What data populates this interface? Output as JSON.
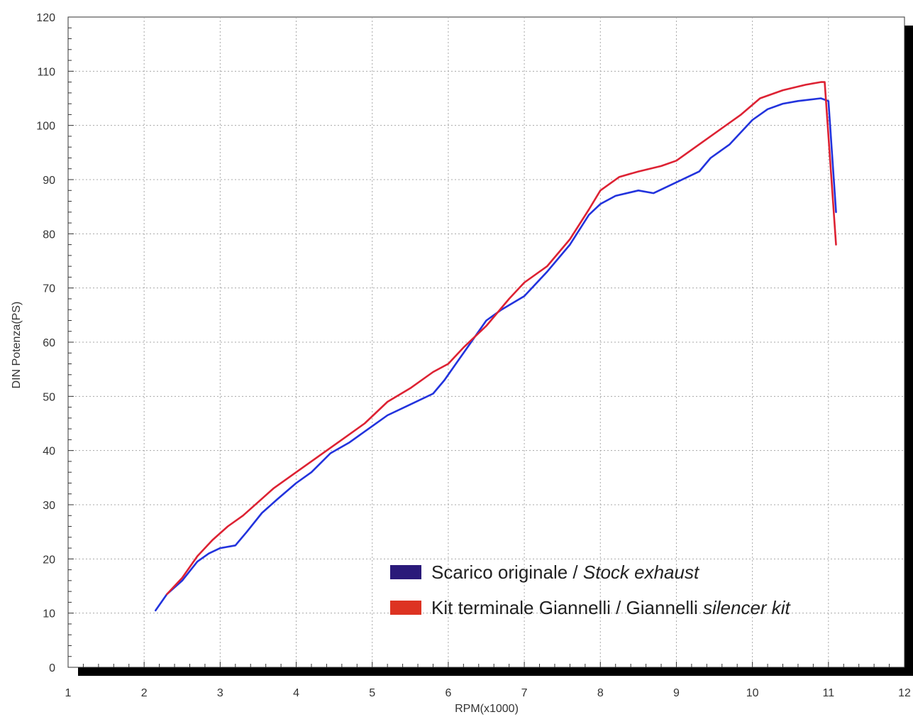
{
  "chart_data": {
    "type": "line",
    "title": "",
    "xlabel": "RPM(x1000)",
    "ylabel": "DIN Potenza(PS)",
    "xlim": [
      1,
      12
    ],
    "ylim": [
      0,
      120
    ],
    "xticks": [
      "1",
      "2",
      "3",
      "4",
      "5",
      "6",
      "7",
      "8",
      "9",
      "10",
      "11",
      "12"
    ],
    "yticks": [
      "0",
      "10",
      "20",
      "30",
      "40",
      "50",
      "60",
      "70",
      "80",
      "90",
      "100",
      "110",
      "120"
    ],
    "grid": true,
    "legend_position": "bottom-right",
    "series": [
      {
        "name": "Scarico originale / Stock exhaust",
        "legend_main": "Scarico originale / ",
        "legend_italic": "Stock exhaust",
        "legend_suffix": "",
        "legend_swatch_color": "#2a1a7a",
        "color": "#2233dd",
        "x": [
          2.15,
          2.3,
          2.5,
          2.7,
          2.85,
          3.0,
          3.2,
          3.35,
          3.55,
          3.75,
          4.0,
          4.2,
          4.45,
          4.7,
          5.0,
          5.2,
          5.5,
          5.8,
          5.95,
          6.1,
          6.3,
          6.5,
          6.7,
          7.0,
          7.3,
          7.6,
          7.85,
          8.0,
          8.2,
          8.5,
          8.7,
          9.0,
          9.3,
          9.45,
          9.7,
          10.0,
          10.2,
          10.4,
          10.6,
          10.9,
          11.0,
          11.1
        ],
        "y": [
          10.5,
          13.5,
          16,
          19.5,
          21,
          22,
          22.5,
          25,
          28.5,
          31,
          34,
          36,
          39.5,
          41.5,
          44.5,
          46.5,
          48.5,
          50.5,
          53,
          56,
          60,
          64,
          66,
          68.5,
          73,
          78,
          83.5,
          85.5,
          87,
          88,
          87.5,
          89.5,
          91.5,
          94,
          96.5,
          101,
          103,
          104,
          104.5,
          105,
          104.5,
          84
        ]
      },
      {
        "name": "Kit terminale Giannelli / Giannelli silencer kit",
        "legend_main": "Kit terminale Giannelli / Giannelli ",
        "legend_italic": "silencer kit",
        "legend_suffix": "",
        "legend_swatch_color": "#dd3322",
        "color": "#dd2233",
        "x": [
          2.3,
          2.5,
          2.7,
          2.9,
          3.1,
          3.3,
          3.5,
          3.7,
          4.0,
          4.3,
          4.6,
          4.9,
          5.2,
          5.5,
          5.8,
          6.0,
          6.2,
          6.5,
          6.8,
          7.0,
          7.3,
          7.6,
          7.85,
          8.0,
          8.25,
          8.5,
          8.8,
          9.0,
          9.3,
          9.6,
          9.85,
          10.1,
          10.4,
          10.7,
          10.9,
          10.95,
          11.1
        ],
        "y": [
          13.5,
          16.5,
          20.5,
          23.5,
          26,
          28,
          30.5,
          33,
          36,
          39,
          42,
          45,
          49,
          51.5,
          54.5,
          56,
          59,
          63,
          68,
          71,
          74,
          79,
          84.5,
          88,
          90.5,
          91.5,
          92.5,
          93.5,
          96.5,
          99.5,
          102,
          105,
          106.5,
          107.5,
          108,
          108,
          78
        ]
      }
    ]
  }
}
